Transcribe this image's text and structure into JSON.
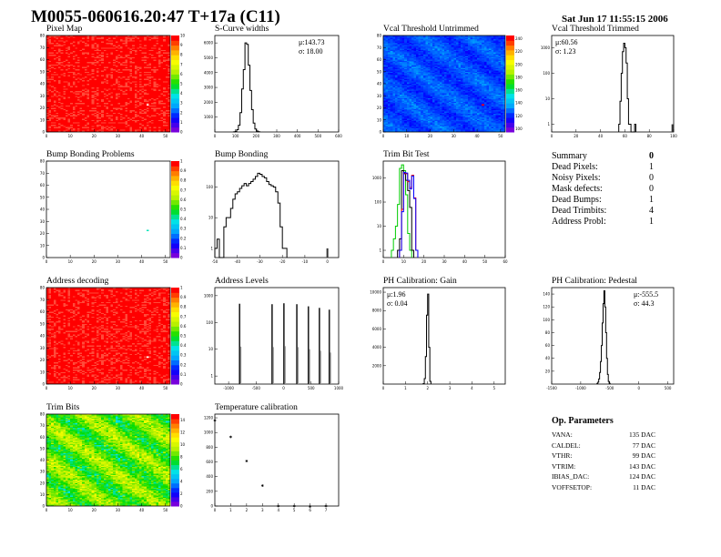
{
  "header": {
    "title": "M0055-060616.20:47 T+17a (C11)",
    "date": "Sat Jun 17 11:55:15 2006"
  },
  "colors": {
    "hist_line": "#000000",
    "trim_green": "#00cc00",
    "trim_red": "#ff0000",
    "trim_blue": "#0000ff",
    "frame": "#000000"
  },
  "summary": {
    "title": "Summary",
    "total": "0",
    "rows": [
      {
        "label": "Dead Pixels:",
        "value": "1"
      },
      {
        "label": "Noisy Pixels:",
        "value": "0"
      },
      {
        "label": "Mask defects:",
        "value": "0"
      },
      {
        "label": "Dead Bumps:",
        "value": "1"
      },
      {
        "label": "Dead Trimbits:",
        "value": "4"
      },
      {
        "label": "Address Probl:",
        "value": "1"
      }
    ]
  },
  "op_params": {
    "title": "Op. Parameters",
    "rows": [
      {
        "label": "VANA:",
        "value": "135 DAC"
      },
      {
        "label": "CALDEL:",
        "value": "77 DAC"
      },
      {
        "label": "VTHR:",
        "value": "99 DAC"
      },
      {
        "label": "VTRIM:",
        "value": "143 DAC"
      },
      {
        "label": "IBIAS_DAC:",
        "value": "124 DAC"
      },
      {
        "label": "VOFFSETOP:",
        "value": "11 DAC"
      }
    ]
  },
  "chart_data": [
    {
      "id": "pixelmap",
      "type": "heatmap",
      "title": "Pixel Map",
      "xlim": [
        0,
        52
      ],
      "ylim": [
        0,
        80
      ],
      "zlim": [
        0,
        10
      ],
      "xticks": [
        0,
        10,
        20,
        30,
        40,
        50
      ],
      "yticks": [
        0,
        10,
        20,
        30,
        40,
        50,
        60,
        70,
        80
      ],
      "zticks": [
        0,
        1,
        2,
        3,
        4,
        5,
        6,
        7,
        8,
        9,
        10
      ],
      "fill": 10,
      "special": [
        {
          "x": 42,
          "y": 22,
          "z": 0
        }
      ]
    },
    {
      "id": "scurve",
      "type": "bar",
      "title": "S-Curve widths",
      "stats": {
        "mean": "μ:143.73",
        "sigma": "σ: 18.00"
      },
      "xlim": [
        0,
        600
      ],
      "ylim": [
        0,
        6500
      ],
      "log": false,
      "xticks": [
        0,
        100,
        200,
        300,
        400,
        500,
        600
      ],
      "yticks": [
        1000,
        2000,
        3000,
        4000,
        5000,
        6000
      ],
      "bin_start": 90,
      "bin_width": 8,
      "values": [
        10,
        40,
        150,
        450,
        1300,
        2900,
        4200,
        6000,
        5900,
        4500,
        2800,
        1500,
        600,
        200,
        60,
        15
      ]
    },
    {
      "id": "vcal_untrimmed",
      "type": "heatmap",
      "title": "Vcal Threshold Untrimmed",
      "xlim": [
        0,
        52
      ],
      "ylim": [
        0,
        80
      ],
      "zlim": [
        95,
        245
      ],
      "xticks": [
        0,
        10,
        20,
        30,
        40,
        50
      ],
      "yticks": [
        0,
        10,
        20,
        30,
        40,
        50,
        60,
        70,
        80
      ],
      "zticks": [
        100,
        120,
        140,
        160,
        180,
        200,
        220,
        240
      ],
      "fill_range": [
        110,
        135
      ],
      "special": [
        {
          "x": 42,
          "y": 22,
          "z": 245
        }
      ]
    },
    {
      "id": "vcal_trimmed",
      "type": "bar",
      "title": "Vcal Threshold Trimmed",
      "stats": {
        "mean": "μ:60.56",
        "sigma": "σ: 1.23"
      },
      "xlim": [
        0,
        100
      ],
      "ylim": [
        0.5,
        3000
      ],
      "log": true,
      "xticks": [
        0,
        20,
        40,
        60,
        80,
        100
      ],
      "yticks": [
        1,
        10,
        100,
        1000
      ],
      "bin_start": 55,
      "bin_width": 1,
      "values": [
        1,
        8,
        100,
        700,
        1500,
        1000,
        250,
        10,
        1,
        1,
        0,
        0,
        0,
        1
      ],
      "extra": [
        {
          "x": 99,
          "v": 1
        }
      ]
    },
    {
      "id": "bump_map",
      "type": "heatmap",
      "title": "Bump Bonding Problems",
      "xlim": [
        0,
        52
      ],
      "ylim": [
        0,
        80
      ],
      "zlim": [
        0,
        1
      ],
      "xticks": [
        0,
        10,
        20,
        30,
        40,
        50
      ],
      "yticks": [
        0,
        10,
        20,
        30,
        40,
        50,
        60,
        70,
        80
      ],
      "zticks": [
        0,
        0.1,
        0.2,
        0.3,
        0.4,
        0.5,
        0.6,
        0.7,
        0.8,
        0.9,
        1
      ],
      "fill": null,
      "special": [
        {
          "x": 42,
          "y": 22,
          "z": 0.4
        }
      ]
    },
    {
      "id": "bump",
      "type": "bar",
      "title": "Bump Bonding",
      "xlim": [
        -50,
        5
      ],
      "ylim": [
        0.5,
        700
      ],
      "log": true,
      "xticks": [
        -50,
        -40,
        -30,
        -20,
        -10,
        0
      ],
      "yticks": [
        1,
        10,
        100
      ],
      "bin_start": -50,
      "bin_width": 1,
      "values": [
        1,
        2,
        0,
        0,
        5,
        10,
        10,
        20,
        40,
        60,
        70,
        90,
        110,
        130,
        110,
        130,
        150,
        180,
        220,
        280,
        260,
        220,
        200,
        150,
        120,
        110,
        100,
        70,
        30,
        5,
        1,
        1
      ],
      "extra": [
        {
          "x": 0,
          "v": 1
        }
      ]
    },
    {
      "id": "trimbit",
      "type": "bar",
      "title": "Trim Bit Test",
      "xlim": [
        0,
        60
      ],
      "ylim": [
        0.5,
        5000
      ],
      "log": true,
      "xticks": [
        0,
        10,
        20,
        30,
        40,
        50,
        60
      ],
      "yticks": [
        1,
        10,
        100,
        1000
      ],
      "series": [
        {
          "color": "#00cc00",
          "bin_start": 4,
          "bin_width": 1,
          "values": [
            1,
            3,
            10,
            80,
            2500,
            3500,
            2000,
            200,
            5,
            1
          ]
        },
        {
          "color": "#000000",
          "bin_start": 7,
          "bin_width": 1,
          "values": [
            1,
            3,
            2000,
            1500,
            800,
            300,
            60,
            1
          ]
        },
        {
          "color": "#ff0000",
          "bin_start": 8,
          "bin_width": 1,
          "values": [
            1,
            50,
            1600,
            1500,
            700,
            400,
            1300,
            150,
            1
          ]
        },
        {
          "color": "#0000ff",
          "bin_start": 8,
          "bin_width": 1,
          "values": [
            1,
            40,
            1700,
            1600,
            800,
            350,
            1200,
            140,
            1
          ]
        }
      ]
    },
    {
      "id": "address_map",
      "type": "heatmap",
      "title": "Address decoding",
      "xlim": [
        0,
        52
      ],
      "ylim": [
        0,
        80
      ],
      "zlim": [
        0,
        1
      ],
      "xticks": [
        0,
        10,
        20,
        30,
        40,
        50
      ],
      "yticks": [
        0,
        10,
        20,
        30,
        40,
        50,
        60,
        70,
        80
      ],
      "zticks": [
        0,
        0.1,
        0.2,
        0.3,
        0.4,
        0.5,
        0.6,
        0.7,
        0.8,
        0.9,
        1
      ],
      "fill": 1,
      "special": [
        {
          "x": 42,
          "y": 22,
          "z": 0
        }
      ]
    },
    {
      "id": "address_levels",
      "type": "bar",
      "title": "Address Levels",
      "xlim": [
        -1250,
        1000
      ],
      "ylim": [
        0.5,
        2000
      ],
      "log": true,
      "xticks": [
        -1000,
        -500,
        0,
        500,
        1000
      ],
      "yticks": [
        1,
        10,
        100,
        1000
      ],
      "peaks": [
        {
          "x": -800,
          "v": 500
        },
        {
          "x": -210,
          "v": 480
        },
        {
          "x": 5,
          "v": 520
        },
        {
          "x": 240,
          "v": 480
        },
        {
          "x": 450,
          "v": 400
        },
        {
          "x": 650,
          "v": 350
        },
        {
          "x": 830,
          "v": 300
        }
      ]
    },
    {
      "id": "ph_gain",
      "type": "bar",
      "title": "PH Calibration: Gain",
      "stats": {
        "mean": "μ:1.96",
        "sigma": "σ: 0.04"
      },
      "xlim": [
        0,
        5.5
      ],
      "ylim": [
        0,
        10500
      ],
      "log": false,
      "xticks": [
        0,
        1,
        2,
        3,
        4,
        5
      ],
      "yticks": [
        2000,
        4000,
        6000,
        8000,
        10000
      ],
      "bin_start": 1.8,
      "bin_width": 0.05,
      "values": [
        50,
        600,
        3000,
        7500,
        9800,
        4000,
        300
      ]
    },
    {
      "id": "ph_pedestal",
      "type": "bar",
      "title": "PH Calibration: Pedestal",
      "stats": {
        "mean": "μ:-555.5",
        "sigma": "σ: 44.3"
      },
      "xlim": [
        -1500,
        600
      ],
      "ylim": [
        0,
        150
      ],
      "log": false,
      "xticks": [
        -1500,
        -1000,
        -500,
        0,
        500
      ],
      "yticks": [
        20,
        40,
        60,
        80,
        100,
        120,
        140
      ],
      "bin_start": -720,
      "bin_width": 15,
      "values": [
        1,
        3,
        8,
        18,
        35,
        60,
        95,
        125,
        145,
        120,
        80,
        40,
        15,
        4,
        1
      ]
    },
    {
      "id": "trimbits_map",
      "type": "heatmap",
      "title": "Trim Bits",
      "xlim": [
        0,
        52
      ],
      "ylim": [
        0,
        80
      ],
      "zlim": [
        0,
        15
      ],
      "xticks": [
        0,
        10,
        20,
        30,
        40,
        50
      ],
      "yticks": [
        0,
        10,
        20,
        30,
        40,
        50,
        60,
        70,
        80
      ],
      "zticks": [
        0,
        2,
        4,
        6,
        8,
        10,
        12,
        14
      ],
      "fill_range": [
        5,
        12
      ]
    },
    {
      "id": "temperature",
      "type": "scatter",
      "title": "Temperature calibration",
      "xlim": [
        0,
        7.8
      ],
      "ylim": [
        0,
        1250
      ],
      "xticks": [
        0,
        1,
        2,
        3,
        4,
        5,
        6,
        7
      ],
      "yticks": [
        0,
        200,
        400,
        600,
        800,
        1000,
        1200
      ],
      "x": [
        0,
        1,
        2,
        3,
        4,
        5,
        6,
        7
      ],
      "y": [
        1180,
        960,
        630,
        300,
        20,
        20,
        10,
        20
      ]
    }
  ]
}
